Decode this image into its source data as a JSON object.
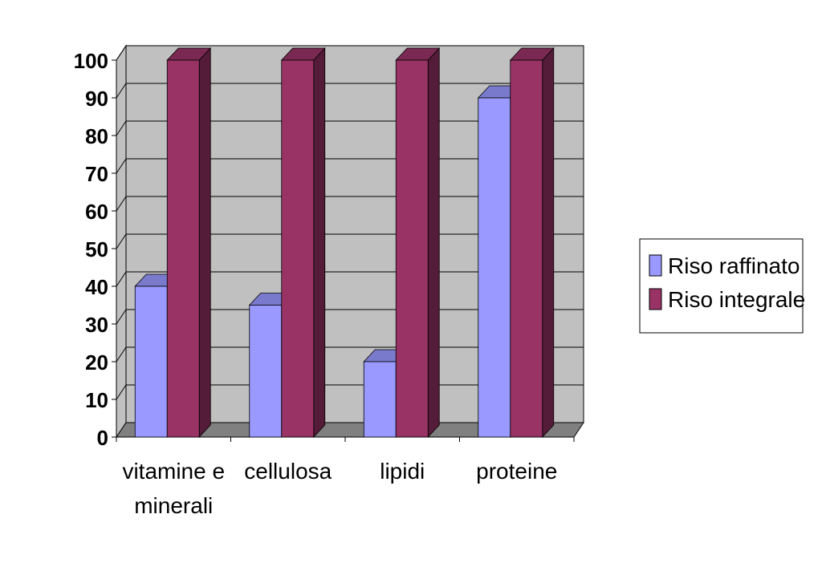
{
  "chart_data": {
    "type": "bar",
    "categories": [
      "vitamine e\nminerali",
      "cellulosa",
      "lipidi",
      "proteine"
    ],
    "series": [
      {
        "name": "Riso raffinato",
        "values": [
          40,
          35,
          20,
          90
        ],
        "color": "#9999ff"
      },
      {
        "name": "Riso integrale",
        "values": [
          100,
          100,
          100,
          100
        ],
        "color": "#993366"
      }
    ],
    "ylim": [
      0,
      100
    ],
    "yticks": [
      "0",
      "10",
      "20",
      "30",
      "40",
      "50",
      "60",
      "70",
      "80",
      "90",
      "100"
    ],
    "title": "",
    "xlabel": "",
    "ylabel": "",
    "grid": true,
    "legend_position": "right",
    "style": "3d-clustered-column",
    "wall_color": "#c0c0c0",
    "floor_color": "#808080"
  }
}
